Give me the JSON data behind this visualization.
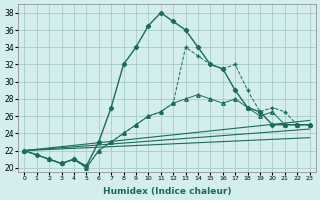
{
  "background_color": "#d4eeee",
  "grid_color": "#a8cccc",
  "line_color": "#1a6b5a",
  "xlabel": "Humidex (Indice chaleur)",
  "ylim": [
    19.5,
    39
  ],
  "xlim": [
    -0.5,
    23.5
  ],
  "yticks": [
    20,
    22,
    24,
    26,
    28,
    30,
    32,
    34,
    36,
    38
  ],
  "xticks": [
    0,
    1,
    2,
    3,
    4,
    5,
    6,
    7,
    8,
    9,
    10,
    11,
    12,
    13,
    14,
    15,
    16,
    17,
    18,
    19,
    20,
    21,
    22,
    23
  ],
  "xtick_labels": [
    "0",
    "1",
    "2",
    "3",
    "4",
    "5",
    "6",
    "7",
    "8",
    "9",
    "10",
    "11",
    "12",
    "13",
    "14",
    "15",
    "16",
    "17",
    "18",
    "19",
    "20",
    "21",
    "22",
    "23"
  ],
  "series_main_x": [
    0,
    1,
    2,
    3,
    4,
    5,
    6,
    7,
    8,
    9,
    10,
    11,
    12,
    13,
    14,
    15,
    16,
    17,
    18,
    19,
    20,
    21,
    22,
    23
  ],
  "series_main_y": [
    22,
    21.5,
    21,
    20.5,
    21,
    20.2,
    23,
    27,
    32,
    34,
    36.5,
    38,
    37,
    36,
    34,
    32,
    31.5,
    29,
    27,
    26.5,
    25,
    25,
    25,
    25
  ],
  "series2_x": [
    0,
    2,
    3,
    4,
    5,
    6,
    7,
    8,
    9,
    10,
    11,
    12,
    13,
    14,
    15,
    16,
    17,
    18,
    19,
    20,
    21,
    22,
    23
  ],
  "series2_y": [
    22,
    21,
    20.5,
    21,
    20,
    22,
    23,
    24,
    25,
    26,
    26.5,
    27.5,
    34,
    33,
    32,
    31.5,
    32,
    29,
    26.5,
    27,
    26.5,
    25,
    25
  ],
  "series3_x": [
    0,
    2,
    3,
    4,
    5,
    6,
    7,
    8,
    9,
    10,
    11,
    12,
    13,
    14,
    15,
    16,
    17,
    18,
    19,
    20,
    21,
    22,
    23
  ],
  "series3_y": [
    22,
    21,
    20.5,
    21,
    20,
    22,
    23,
    24,
    25,
    26,
    26.5,
    27.5,
    28,
    28.5,
    28,
    27.5,
    28,
    27,
    26,
    26.5,
    25,
    25,
    25
  ],
  "line1_x": [
    0,
    23
  ],
  "line1_y": [
    22,
    25.5
  ],
  "line2_x": [
    0,
    23
  ],
  "line2_y": [
    22,
    24.5
  ],
  "line3_x": [
    0,
    23
  ],
  "line3_y": [
    22,
    23.5
  ]
}
